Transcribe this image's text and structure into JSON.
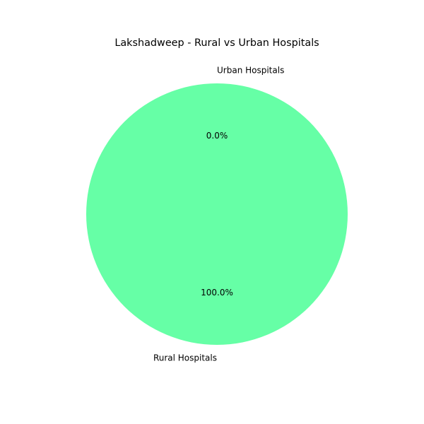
{
  "chart_data": {
    "type": "pie",
    "title": "Lakshadweep - Rural vs Urban Hospitals",
    "categories": [
      "Rural Hospitals",
      "Urban Hospitals"
    ],
    "values": [
      100.0,
      0.0
    ],
    "percent_labels": [
      "100.0%",
      "0.0%"
    ],
    "colors": [
      "#66ffa6",
      "#ff9999"
    ],
    "start_angle_deg": 90,
    "legend": "none"
  }
}
